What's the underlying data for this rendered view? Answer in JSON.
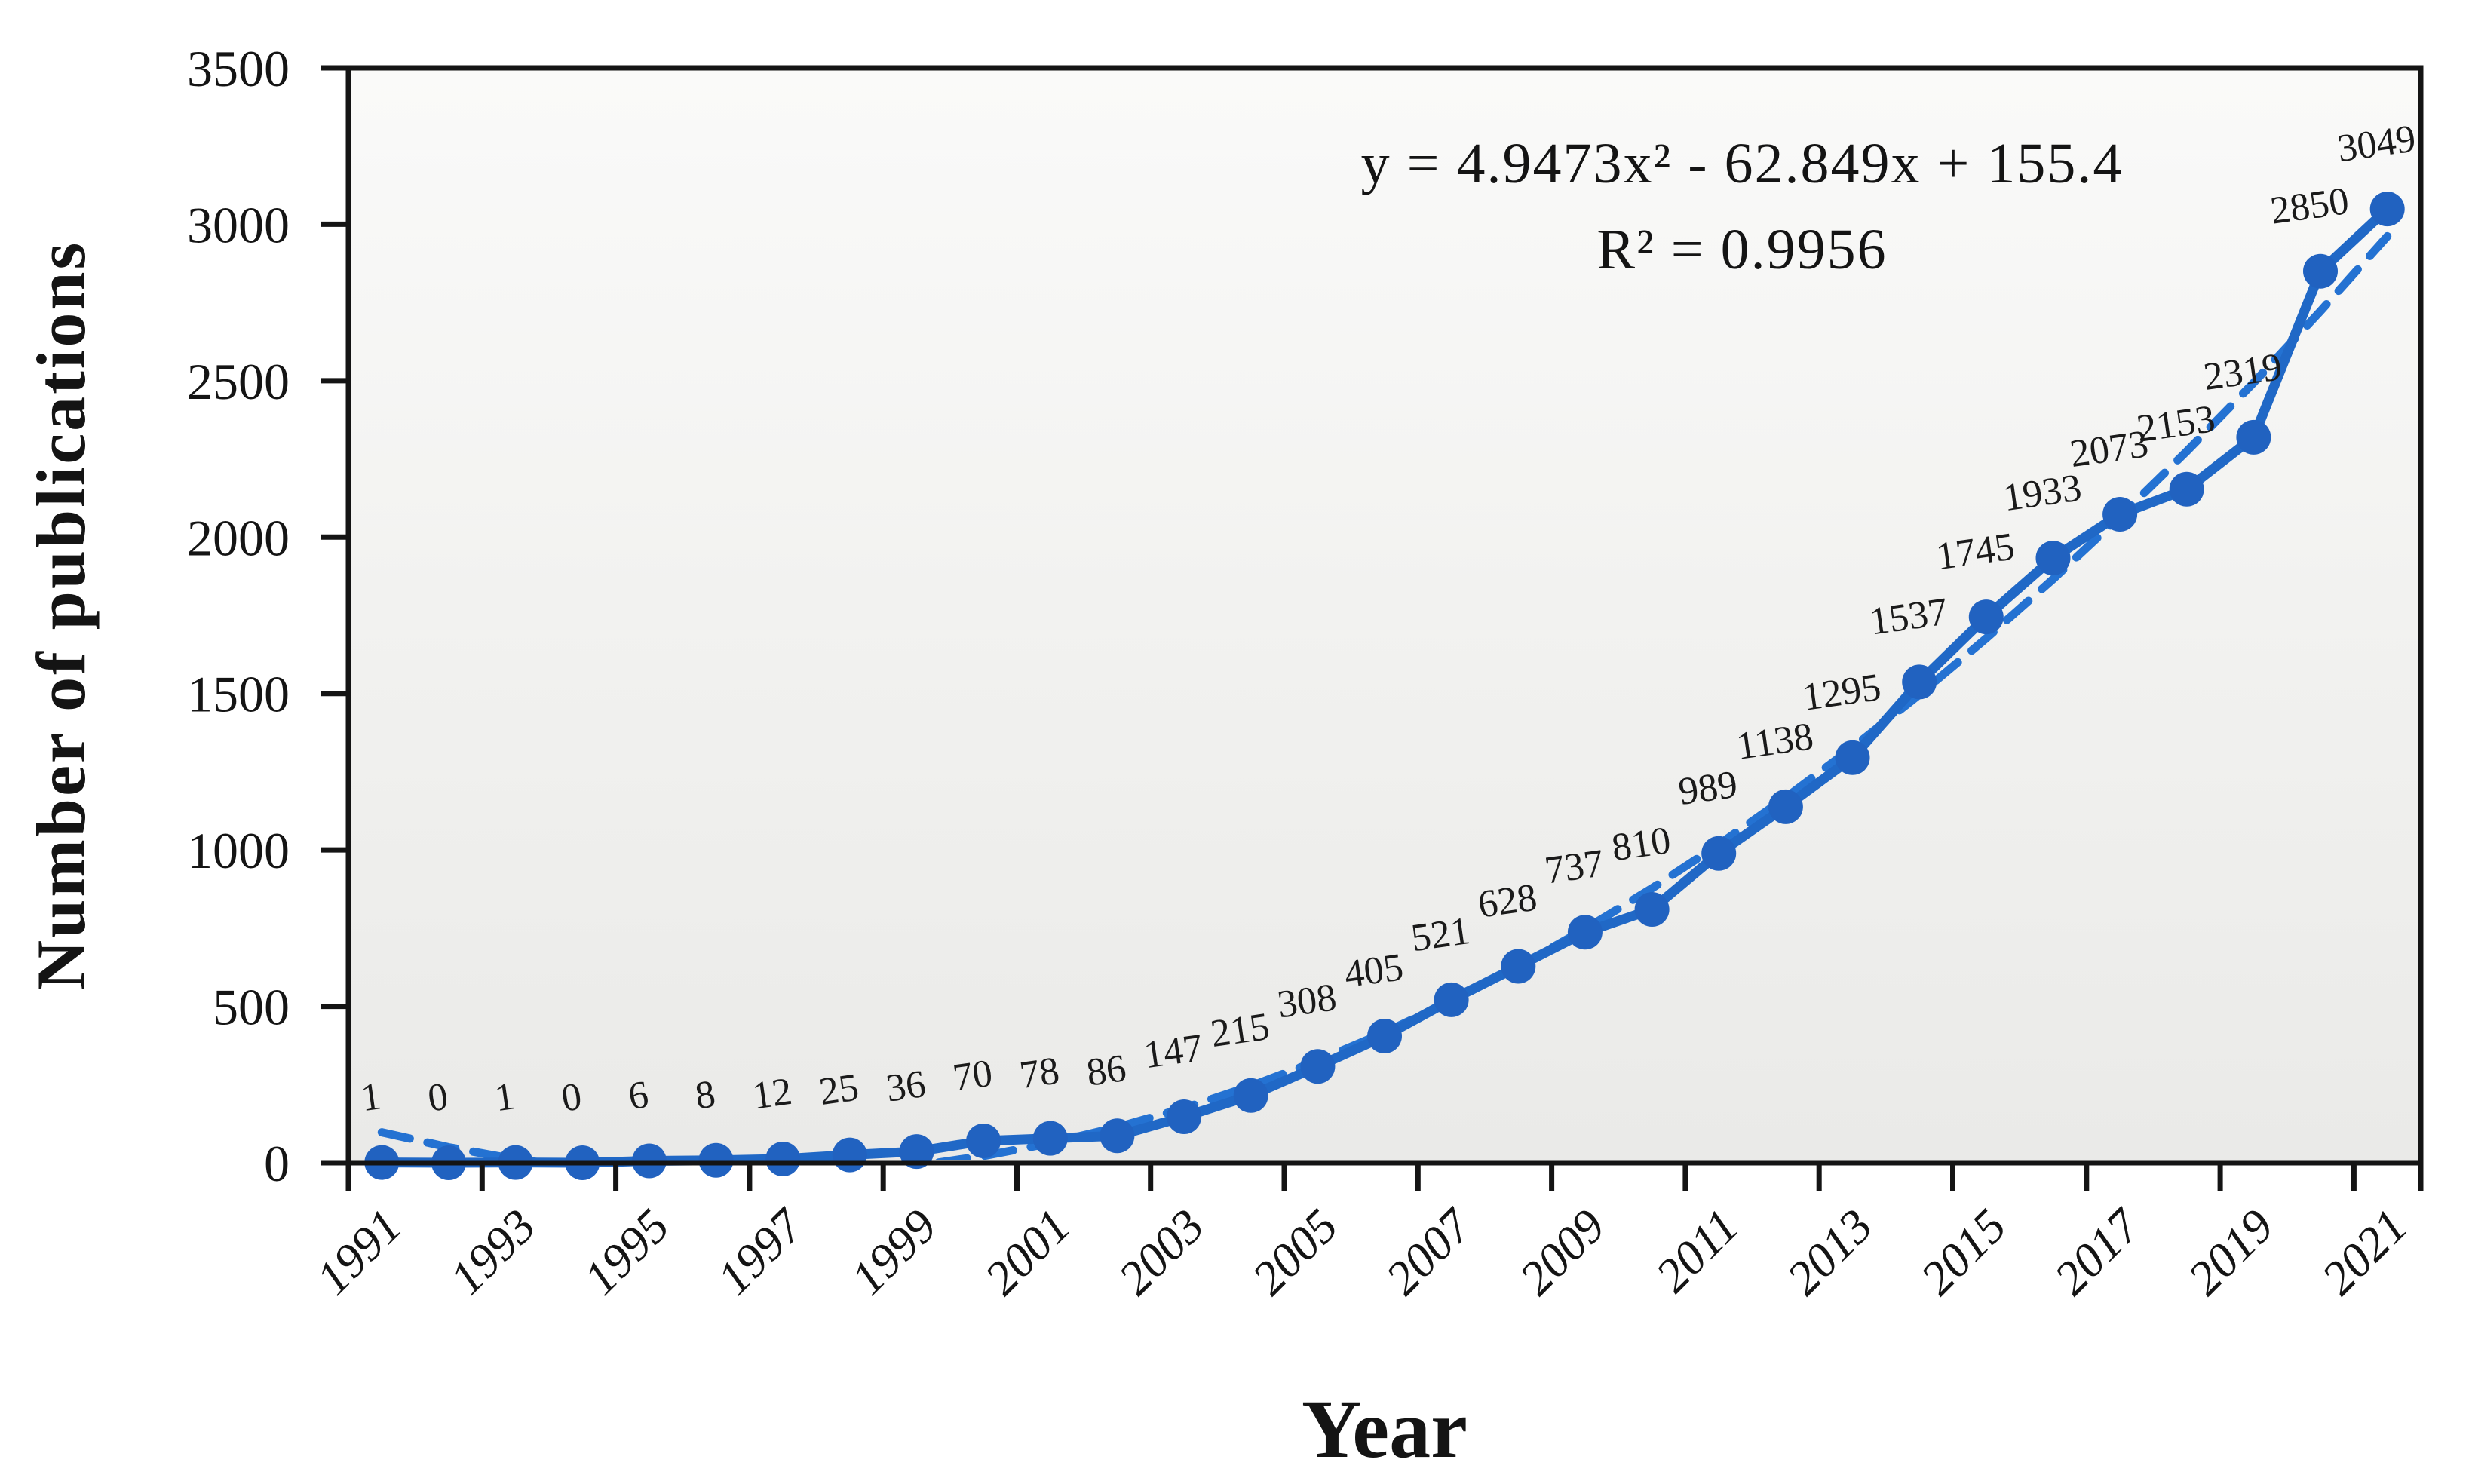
{
  "chart_data": {
    "type": "line",
    "title": "",
    "xlabel": "Year",
    "ylabel": "Number of publications",
    "x": [
      1991,
      1992,
      1993,
      1994,
      1995,
      1996,
      1997,
      1998,
      1999,
      2000,
      2001,
      2002,
      2003,
      2004,
      2005,
      2006,
      2007,
      2008,
      2009,
      2010,
      2011,
      2012,
      2013,
      2014,
      2015,
      2016,
      2017,
      2018,
      2019,
      2020,
      2021
    ],
    "series": [
      {
        "name": "Number of publications",
        "values": [
          1,
          0,
          1,
          0,
          6,
          8,
          12,
          25,
          36,
          70,
          78,
          86,
          147,
          215,
          308,
          405,
          521,
          628,
          737,
          810,
          989,
          1138,
          1295,
          1537,
          1745,
          1933,
          2073,
          2153,
          2319,
          2850,
          3049
        ]
      }
    ],
    "data_labels_shown": true,
    "trendline": {
      "type": "polynomial-2",
      "coefficients": [
        4.9473,
        -62.849,
        155.4
      ],
      "equation": "y = 4.9473x² - 62.849x + 155.4",
      "r2": "R² = 0.9956",
      "style": "dashed"
    },
    "ylim": [
      0,
      3500
    ],
    "yticks": [
      0,
      500,
      1000,
      1500,
      2000,
      2500,
      3000,
      3500
    ],
    "xticks": [
      1991,
      1993,
      1995,
      1997,
      1999,
      2001,
      2003,
      2005,
      2007,
      2009,
      2011,
      2013,
      2015,
      2017,
      2019,
      2021
    ],
    "grid": false,
    "legend_position": "none",
    "colors": {
      "series_line": "#2068c6",
      "marker_fill": "#2162c0",
      "trend_line": "#2472d2",
      "axis": "#141414",
      "data_label_text": "#1a1a1a",
      "plot_bg_top": "#fafaf9",
      "plot_bg_bottom": "#eaeae8"
    }
  }
}
